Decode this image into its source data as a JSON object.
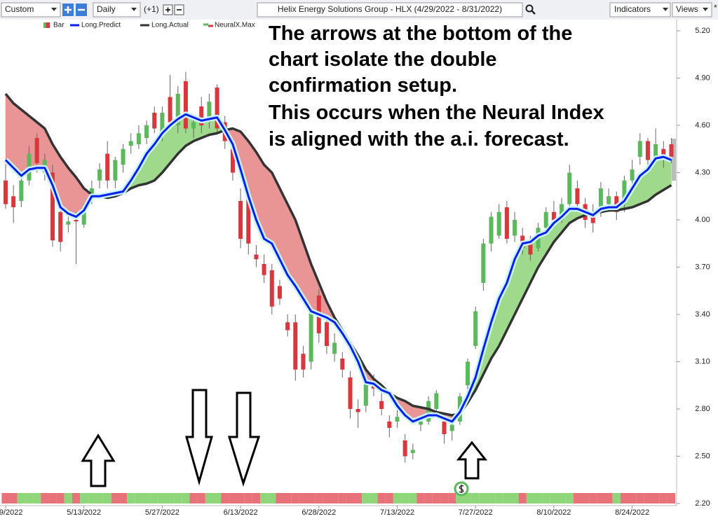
{
  "toolbar": {
    "range": "Custom",
    "interval": "Daily",
    "offset": "(+1)",
    "symbol": "Helix Energy Solutions Group - HLX (4/29/2022 - 8/31/2022)",
    "indicators": "Indicators",
    "views": "Views",
    "star": "*"
  },
  "chart_data": {
    "type": "candlestick",
    "annotation": [
      "The arrows at the bottom of the",
      "chart isolate the double",
      "confirmation setup.",
      "This occurs when the Neural Index",
      "is aligned with the a.i. forecast."
    ],
    "x": [
      "4/29/2022",
      "5/2/2022",
      "5/3/2022",
      "5/4/2022",
      "5/5/2022",
      "5/6/2022",
      "5/9/2022",
      "5/10/2022",
      "5/11/2022",
      "5/12/2022",
      "5/13/2022",
      "5/16/2022",
      "5/17/2022",
      "5/18/2022",
      "5/19/2022",
      "5/20/2022",
      "5/23/2022",
      "5/24/2022",
      "5/25/2022",
      "5/26/2022",
      "5/27/2022",
      "5/31/2022",
      "6/1/2022",
      "6/2/2022",
      "6/3/2022",
      "6/6/2022",
      "6/7/2022",
      "6/8/2022",
      "6/9/2022",
      "6/10/2022",
      "6/13/2022",
      "6/14/2022",
      "6/15/2022",
      "6/16/2022",
      "6/17/2022",
      "6/21/2022",
      "6/22/2022",
      "6/23/2022",
      "6/24/2022",
      "6/27/2022",
      "6/28/2022",
      "6/29/2022",
      "6/30/2022",
      "7/1/2022",
      "7/5/2022",
      "7/6/2022",
      "7/7/2022",
      "7/8/2022",
      "7/11/2022",
      "7/12/2022",
      "7/13/2022",
      "7/14/2022",
      "7/15/2022",
      "7/18/2022",
      "7/19/2022",
      "7/20/2022",
      "7/21/2022",
      "7/22/2022",
      "7/25/2022",
      "7/26/2022",
      "7/27/2022",
      "7/28/2022",
      "7/29/2022",
      "8/1/2022",
      "8/2/2022",
      "8/3/2022",
      "8/4/2022",
      "8/5/2022",
      "8/8/2022",
      "8/9/2022",
      "8/10/2022",
      "8/11/2022",
      "8/12/2022",
      "8/15/2022",
      "8/16/2022",
      "8/17/2022",
      "8/18/2022",
      "8/19/2022",
      "8/22/2022",
      "8/23/2022",
      "8/24/2022",
      "8/25/2022",
      "8/26/2022",
      "8/29/2022",
      "8/30/2022",
      "8/31/2022"
    ],
    "bar": {
      "name": "Bar",
      "up_color": "#5cb85c",
      "down_color": "#d9363e",
      "ohlc": [
        [
          4.25,
          4.38,
          4.07,
          4.1
        ],
        [
          4.15,
          4.22,
          3.98,
          4.08
        ],
        [
          4.12,
          4.3,
          4.08,
          4.25
        ],
        [
          4.25,
          4.47,
          4.22,
          4.42
        ],
        [
          4.52,
          4.55,
          4.3,
          4.36
        ],
        [
          4.3,
          4.42,
          4.25,
          4.38
        ],
        [
          4.3,
          4.35,
          3.83,
          3.87
        ],
        [
          4.05,
          4.08,
          3.8,
          3.86
        ],
        [
          3.97,
          4.02,
          3.92,
          3.99
        ],
        [
          4.0,
          4.05,
          3.72,
          3.99
        ],
        [
          3.97,
          4.1,
          3.95,
          4.07
        ],
        [
          4.15,
          4.25,
          4.1,
          4.2
        ],
        [
          4.25,
          4.36,
          4.2,
          4.32
        ],
        [
          4.42,
          4.5,
          4.2,
          4.25
        ],
        [
          4.25,
          4.4,
          4.2,
          4.38
        ],
        [
          4.35,
          4.48,
          4.3,
          4.45
        ],
        [
          4.47,
          4.55,
          4.42,
          4.5
        ],
        [
          4.48,
          4.6,
          4.45,
          4.55
        ],
        [
          4.52,
          4.63,
          4.48,
          4.6
        ],
        [
          4.68,
          4.72,
          4.55,
          4.58
        ],
        [
          4.55,
          4.72,
          4.5,
          4.68
        ],
        [
          4.78,
          4.92,
          4.58,
          4.62
        ],
        [
          4.6,
          4.85,
          4.55,
          4.8
        ],
        [
          4.88,
          4.94,
          4.55,
          4.58
        ],
        [
          4.58,
          4.66,
          4.52,
          4.62
        ],
        [
          4.72,
          4.78,
          4.55,
          4.6
        ],
        [
          4.62,
          4.8,
          4.58,
          4.75
        ],
        [
          4.84,
          4.86,
          4.55,
          4.58
        ],
        [
          4.62,
          4.66,
          4.45,
          4.5
        ],
        [
          4.45,
          4.5,
          4.25,
          4.3
        ],
        [
          4.12,
          4.2,
          3.82,
          3.88
        ],
        [
          4.15,
          4.18,
          3.78,
          3.85
        ],
        [
          3.78,
          3.84,
          3.7,
          3.75
        ],
        [
          3.72,
          3.78,
          3.6,
          3.65
        ],
        [
          3.68,
          3.72,
          3.4,
          3.45
        ],
        [
          3.58,
          3.62,
          3.46,
          3.5
        ],
        [
          3.35,
          3.4,
          3.26,
          3.3
        ],
        [
          3.35,
          3.4,
          2.98,
          3.05
        ],
        [
          3.15,
          3.2,
          3.0,
          3.05
        ],
        [
          3.1,
          3.45,
          3.05,
          3.42
        ],
        [
          3.52,
          3.56,
          3.22,
          3.28
        ],
        [
          3.35,
          3.4,
          3.15,
          3.2
        ],
        [
          3.15,
          3.28,
          3.1,
          3.22
        ],
        [
          3.12,
          3.16,
          3.0,
          3.05
        ],
        [
          3.0,
          3.04,
          2.74,
          2.8
        ],
        [
          2.8,
          2.86,
          2.68,
          2.78
        ],
        [
          2.82,
          3.0,
          2.78,
          2.97
        ],
        [
          2.98,
          3.02,
          2.88,
          2.93
        ],
        [
          2.85,
          2.9,
          2.76,
          2.8
        ],
        [
          2.72,
          2.76,
          2.62,
          2.68
        ],
        [
          2.72,
          2.8,
          2.68,
          2.75
        ],
        [
          2.6,
          2.64,
          2.46,
          2.5
        ],
        [
          2.52,
          2.58,
          2.48,
          2.54
        ],
        [
          2.7,
          2.76,
          2.66,
          2.72
        ],
        [
          2.72,
          2.88,
          2.7,
          2.85
        ],
        [
          2.8,
          2.92,
          2.76,
          2.9
        ],
        [
          2.72,
          2.76,
          2.58,
          2.64
        ],
        [
          2.66,
          2.76,
          2.6,
          2.7
        ],
        [
          2.72,
          2.9,
          2.7,
          2.88
        ],
        [
          2.95,
          3.12,
          2.92,
          3.1
        ],
        [
          3.2,
          3.45,
          3.18,
          3.42
        ],
        [
          3.6,
          3.88,
          3.55,
          3.85
        ],
        [
          3.85,
          4.05,
          3.8,
          4.02
        ],
        [
          3.9,
          4.1,
          3.88,
          4.05
        ],
        [
          4.08,
          4.12,
          3.85,
          3.88
        ],
        [
          3.9,
          4.05,
          3.86,
          4.0
        ],
        [
          3.9,
          3.95,
          3.78,
          3.82
        ],
        [
          3.85,
          3.9,
          3.74,
          3.78
        ],
        [
          3.82,
          3.98,
          3.8,
          3.95
        ],
        [
          3.95,
          4.08,
          3.92,
          4.05
        ],
        [
          4.05,
          4.12,
          3.96,
          4.0
        ],
        [
          4.0,
          4.14,
          3.98,
          4.1
        ],
        [
          4.1,
          4.35,
          4.08,
          4.3
        ],
        [
          4.2,
          4.25,
          4.05,
          4.1
        ],
        [
          4.1,
          4.14,
          3.95,
          4.0
        ],
        [
          4.05,
          4.1,
          3.92,
          3.98
        ],
        [
          4.08,
          4.24,
          4.02,
          4.2
        ],
        [
          4.1,
          4.2,
          4.05,
          4.15
        ],
        [
          4.15,
          4.18,
          4.0,
          4.05
        ],
        [
          4.1,
          4.28,
          4.05,
          4.25
        ],
        [
          4.25,
          4.38,
          4.2,
          4.32
        ],
        [
          4.4,
          4.55,
          4.35,
          4.5
        ],
        [
          4.5,
          4.52,
          4.35,
          4.38
        ],
        [
          4.4,
          4.58,
          4.36,
          4.48
        ],
        [
          4.45,
          4.5,
          4.33,
          4.38
        ],
        [
          4.48,
          4.52,
          4.36,
          4.4
        ]
      ]
    },
    "series": [
      {
        "name": "Long.Predict",
        "color": "#0a1ef0",
        "values": [
          4.38,
          4.33,
          4.28,
          4.32,
          4.33,
          4.33,
          4.22,
          4.08,
          4.04,
          4.02,
          4.06,
          4.15,
          4.15,
          4.16,
          4.17,
          4.18,
          4.25,
          4.33,
          4.42,
          4.48,
          4.55,
          4.6,
          4.64,
          4.67,
          4.65,
          4.63,
          4.64,
          4.65,
          4.57,
          4.48,
          4.32,
          4.15,
          4.0,
          3.88,
          3.85,
          3.75,
          3.65,
          3.58,
          3.5,
          3.42,
          3.4,
          3.38,
          3.35,
          3.28,
          3.2,
          3.1,
          2.97,
          2.96,
          2.92,
          2.9,
          2.82,
          2.76,
          2.72,
          2.74,
          2.76,
          2.76,
          2.74,
          2.72,
          2.78,
          2.88,
          3.0,
          3.18,
          3.35,
          3.5,
          3.6,
          3.75,
          3.85,
          3.86,
          3.9,
          3.92,
          3.98,
          4.02,
          4.07,
          4.07,
          4.05,
          4.03,
          4.07,
          4.08,
          4.08,
          4.12,
          4.2,
          4.28,
          4.32,
          4.39,
          4.4,
          4.38
        ]
      },
      {
        "name": "Long.Actual",
        "color": "#333333",
        "values": [
          4.8,
          4.74,
          4.7,
          4.66,
          4.62,
          4.58,
          4.48,
          4.4,
          4.33,
          4.27,
          4.2,
          4.16,
          4.15,
          4.14,
          4.15,
          4.17,
          4.2,
          4.22,
          4.23,
          4.25,
          4.3,
          4.36,
          4.42,
          4.47,
          4.5,
          4.52,
          4.54,
          4.55,
          4.57,
          4.58,
          4.56,
          4.5,
          4.43,
          4.35,
          4.3,
          4.2,
          4.1,
          4.0,
          3.86,
          3.72,
          3.6,
          3.48,
          3.38,
          3.3,
          3.22,
          3.14,
          3.05,
          2.99,
          2.95,
          2.9,
          2.87,
          2.85,
          2.82,
          2.81,
          2.8,
          2.78,
          2.77,
          2.76,
          2.77,
          2.84,
          2.92,
          3.02,
          3.12,
          3.2,
          3.3,
          3.4,
          3.5,
          3.6,
          3.7,
          3.78,
          3.86,
          3.92,
          3.98,
          4.01,
          4.03,
          4.04,
          4.05,
          4.06,
          4.06,
          4.07,
          4.08,
          4.1,
          4.12,
          4.16,
          4.19,
          4.22
        ]
      },
      {
        "name": "NeuralX.Max",
        "colors": [
          "#e8727a",
          "#8fd67a"
        ],
        "values": [
          0,
          0,
          1,
          1,
          1,
          0,
          0,
          0,
          1,
          0,
          1,
          1,
          1,
          1,
          0,
          0,
          1,
          1,
          1,
          1,
          1,
          1,
          1,
          1,
          0,
          0,
          1,
          1,
          0,
          0,
          0,
          0,
          0,
          1,
          1,
          0,
          0,
          0,
          0,
          0,
          0,
          0,
          0,
          0,
          0,
          0,
          1,
          1,
          0,
          0,
          1,
          1,
          1,
          0,
          0,
          0,
          0,
          0,
          1,
          1,
          1,
          1,
          1,
          1,
          1,
          1,
          0,
          1,
          1,
          1,
          1,
          1,
          1,
          0,
          0,
          0,
          0,
          0,
          1,
          0,
          0,
          0,
          0,
          0,
          0,
          0
        ]
      }
    ],
    "fill_up": "#9ed98c",
    "fill_down": "#e99595",
    "ylim": [
      2.2,
      5.2
    ],
    "yticks": [
      {
        "value": 5.2,
        "label": "5.20"
      },
      {
        "value": 4.9,
        "label": "4.90"
      },
      {
        "value": 4.6,
        "label": "4.60"
      },
      {
        "value": 4.3,
        "label": "4.30"
      },
      {
        "value": 4.0,
        "label": "4.00"
      },
      {
        "value": 3.7,
        "label": "3.70"
      },
      {
        "value": 3.4,
        "label": "3.40"
      },
      {
        "value": 3.1,
        "label": "3.10"
      },
      {
        "value": 2.8,
        "label": "2.80"
      },
      {
        "value": 2.5,
        "label": "2.50"
      },
      {
        "value": 2.2,
        "label": "2.20"
      }
    ],
    "grid": false
  }
}
